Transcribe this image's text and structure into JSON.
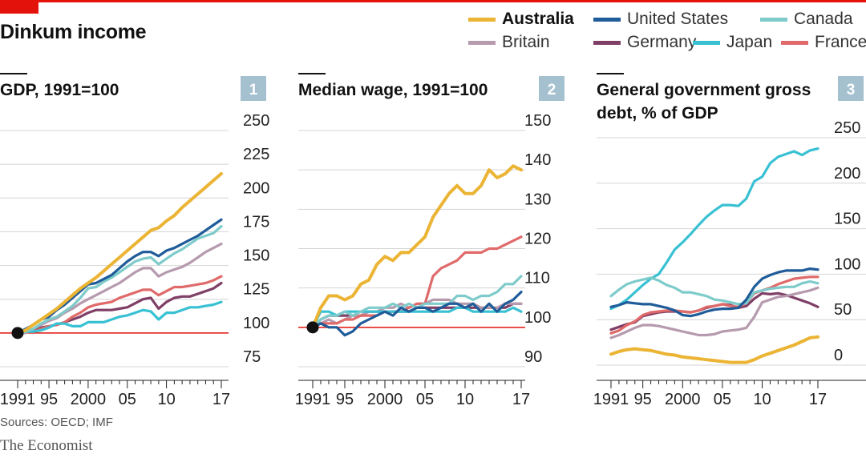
{
  "header": {
    "title": "Dinkum income",
    "source": "Sources: OECD; IMF",
    "brand": "The Economist"
  },
  "colors": {
    "accent": "#e3120b",
    "Australia": "#ebb434",
    "United States": "#1f5c99",
    "Canada": "#7dcbca",
    "Britain": "#b69aae",
    "Germany": "#7f3f66",
    "Japan": "#38c1d3",
    "France": "#e06a6a",
    "baseline": "#e3120b",
    "grid": "#d4d4d4",
    "numbox": "#a5c0cf"
  },
  "legend": [
    {
      "name": "Australia",
      "bold": true
    },
    {
      "name": "United States",
      "bold": false
    },
    {
      "name": "Canada",
      "bold": false
    },
    {
      "name": "Britain",
      "bold": false
    },
    {
      "name": "Germany",
      "bold": false
    },
    {
      "name": "Japan",
      "bold": false
    },
    {
      "name": "France",
      "bold": false
    }
  ],
  "chart_data": [
    {
      "type": "line",
      "number": "1",
      "title": "GDP, 1991=100",
      "x": [
        1991,
        1992,
        1993,
        1994,
        1995,
        1996,
        1997,
        1998,
        1999,
        2000,
        2001,
        2002,
        2003,
        2004,
        2005,
        2006,
        2007,
        2008,
        2009,
        2010,
        2011,
        2012,
        2013,
        2014,
        2015,
        2016,
        2017
      ],
      "xticks": [
        {
          "v": 1991,
          "label": "1991"
        },
        {
          "v": 1995,
          "label": "95"
        },
        {
          "v": 2000,
          "label": "2000"
        },
        {
          "v": 2005,
          "label": "05"
        },
        {
          "v": 2010,
          "label": "10"
        },
        {
          "v": 2017,
          "label": "17"
        }
      ],
      "ylim": [
        75,
        250
      ],
      "yticks": [
        75,
        100,
        125,
        150,
        175,
        200,
        225,
        250
      ],
      "baseline": 100,
      "start_marker": [
        1991,
        100
      ],
      "grid": true,
      "series": [
        {
          "name": "Australia",
          "values": [
            100,
            102,
            106,
            110,
            114,
            118,
            123,
            128,
            133,
            137,
            141,
            146,
            151,
            156,
            161,
            166,
            171,
            176,
            178,
            183,
            187,
            193,
            198,
            203,
            208,
            213,
            218
          ]
        },
        {
          "name": "United States",
          "values": [
            100,
            103,
            106,
            110,
            112,
            117,
            121,
            126,
            131,
            136,
            137,
            140,
            143,
            148,
            153,
            157,
            160,
            160,
            157,
            161,
            163,
            166,
            169,
            172,
            176,
            180,
            184
          ]
        },
        {
          "name": "Canada",
          "values": [
            100,
            101,
            103,
            107,
            110,
            112,
            116,
            120,
            126,
            133,
            134,
            138,
            141,
            145,
            149,
            153,
            155,
            156,
            151,
            155,
            159,
            162,
            166,
            170,
            172,
            174,
            179
          ]
        },
        {
          "name": "Britain",
          "values": [
            100,
            100,
            103,
            106,
            109,
            111,
            115,
            118,
            122,
            125,
            128,
            131,
            134,
            137,
            141,
            145,
            148,
            148,
            142,
            145,
            147,
            149,
            152,
            156,
            160,
            163,
            166
          ]
        },
        {
          "name": "Germany",
          "values": [
            100,
            102,
            101,
            104,
            105,
            106,
            108,
            110,
            112,
            115,
            117,
            117,
            117,
            118,
            119,
            122,
            125,
            126,
            118,
            123,
            126,
            127,
            127,
            129,
            131,
            133,
            137
          ]
        },
        {
          "name": "Japan",
          "values": [
            100,
            101,
            101,
            102,
            104,
            107,
            107,
            105,
            105,
            108,
            108,
            108,
            110,
            112,
            113,
            115,
            117,
            116,
            110,
            115,
            115,
            117,
            119,
            119,
            120,
            121,
            123
          ]
        },
        {
          "name": "France",
          "values": [
            100,
            101,
            101,
            103,
            105,
            106,
            108,
            112,
            115,
            119,
            121,
            122,
            123,
            126,
            128,
            130,
            132,
            132,
            128,
            131,
            134,
            134,
            135,
            136,
            137,
            139,
            142
          ]
        }
      ]
    },
    {
      "type": "line",
      "number": "2",
      "title": "Median wage, 1991=100",
      "x": [
        1991,
        1992,
        1993,
        1994,
        1995,
        1996,
        1997,
        1998,
        1999,
        2000,
        2001,
        2002,
        2003,
        2004,
        2005,
        2006,
        2007,
        2008,
        2009,
        2010,
        2011,
        2012,
        2013,
        2014,
        2015,
        2016,
        2017
      ],
      "xticks": [
        {
          "v": 1991,
          "label": "1991"
        },
        {
          "v": 1995,
          "label": "95"
        },
        {
          "v": 2000,
          "label": "2000"
        },
        {
          "v": 2005,
          "label": "05"
        },
        {
          "v": 2010,
          "label": "10"
        },
        {
          "v": 2017,
          "label": "17"
        }
      ],
      "ylim": [
        90,
        150
      ],
      "yticks": [
        90,
        100,
        110,
        120,
        130,
        140,
        150
      ],
      "baseline": 100,
      "start_marker": [
        1991,
        100
      ],
      "grid": true,
      "series": [
        {
          "name": "Australia",
          "values": [
            100,
            105,
            108,
            108,
            107,
            108,
            111,
            112,
            116,
            118,
            117,
            119,
            119,
            121,
            123,
            128,
            131,
            134,
            136,
            134,
            134,
            136,
            140,
            138,
            139,
            141,
            140
          ]
        },
        {
          "name": "United States",
          "values": [
            100,
            101,
            100,
            100,
            98,
            99,
            101,
            102,
            103,
            104,
            103,
            105,
            104,
            105,
            105,
            104,
            105,
            106,
            106,
            105,
            106,
            104,
            106,
            104,
            106,
            107,
            109
          ]
        },
        {
          "name": "Canada",
          "values": [
            100,
            102,
            103,
            103,
            104,
            103,
            104,
            105,
            105,
            105,
            106,
            105,
            106,
            105,
            106,
            106,
            106,
            106,
            108,
            108,
            107,
            108,
            108,
            109,
            111,
            111,
            113
          ]
        },
        {
          "name": "Britain",
          "values": [
            100,
            101,
            102,
            101,
            102,
            103,
            103,
            104,
            104,
            105,
            105,
            106,
            105,
            106,
            106,
            107,
            107,
            107,
            106,
            106,
            106,
            105,
            105,
            105,
            106,
            106,
            106
          ]
        },
        {
          "name": "Germany",
          "values": [
            100,
            102,
            103,
            103,
            103,
            103,
            103,
            104,
            104,
            104,
            104,
            104,
            104,
            105,
            105,
            105,
            105,
            105,
            105,
            105,
            105,
            105,
            105,
            105,
            105,
            106,
            106
          ]
        },
        {
          "name": "Japan",
          "values": [
            100,
            104,
            104,
            103,
            104,
            104,
            104,
            104,
            104,
            104,
            104,
            104,
            104,
            104,
            104,
            104,
            104,
            104,
            105,
            105,
            104,
            104,
            104,
            104,
            104,
            105,
            104
          ]
        },
        {
          "name": "France",
          "values": [
            100,
            101,
            101,
            101,
            102,
            102,
            103,
            103,
            103,
            104,
            104,
            104,
            105,
            106,
            106,
            113,
            115,
            116,
            117,
            119,
            119,
            119,
            120,
            120,
            121,
            122,
            123
          ]
        }
      ]
    },
    {
      "type": "line",
      "number": "3",
      "title": "General government gross debt, % of GDP",
      "title_lines": [
        "General government gross",
        "debt, % of GDP"
      ],
      "x": [
        1991,
        1992,
        1993,
        1994,
        1995,
        1996,
        1997,
        1998,
        1999,
        2000,
        2001,
        2002,
        2003,
        2004,
        2005,
        2006,
        2007,
        2008,
        2009,
        2010,
        2011,
        2012,
        2013,
        2014,
        2015,
        2016,
        2017
      ],
      "xticks": [
        {
          "v": 1991,
          "label": "1991"
        },
        {
          "v": 1995,
          "label": "95"
        },
        {
          "v": 2000,
          "label": "2000"
        },
        {
          "v": 2005,
          "label": "05"
        },
        {
          "v": 2010,
          "label": "10"
        },
        {
          "v": 2017,
          "label": "17"
        }
      ],
      "ylim": [
        0,
        250
      ],
      "yticks": [
        0,
        50,
        100,
        150,
        200,
        250
      ],
      "grid": true,
      "series": [
        {
          "name": "Australia",
          "values": [
            12,
            15,
            17,
            18,
            17,
            16,
            14,
            12,
            11,
            9,
            8,
            7,
            6,
            5,
            4,
            3,
            3,
            3,
            6,
            10,
            13,
            16,
            19,
            22,
            26,
            30,
            31
          ]
        },
        {
          "name": "United States",
          "values": [
            64,
            66,
            69,
            68,
            67,
            67,
            65,
            63,
            60,
            55,
            54,
            56,
            59,
            61,
            62,
            62,
            63,
            72,
            86,
            95,
            99,
            102,
            104,
            104,
            104,
            106,
            105
          ]
        },
        {
          "name": "Canada",
          "values": [
            76,
            83,
            89,
            92,
            94,
            96,
            93,
            88,
            85,
            80,
            80,
            78,
            76,
            72,
            71,
            69,
            67,
            68,
            80,
            82,
            84,
            85,
            86,
            86,
            90,
            92,
            90
          ]
        },
        {
          "name": "Britain",
          "values": [
            30,
            33,
            37,
            41,
            44,
            44,
            43,
            41,
            39,
            37,
            35,
            33,
            33,
            34,
            37,
            38,
            39,
            41,
            53,
            69,
            72,
            75,
            76,
            78,
            80,
            82,
            85
          ]
        },
        {
          "name": "Germany",
          "values": [
            39,
            42,
            45,
            47,
            54,
            56,
            58,
            59,
            59,
            59,
            58,
            60,
            63,
            65,
            67,
            66,
            63,
            65,
            73,
            79,
            78,
            79,
            77,
            74,
            71,
            68,
            64
          ]
        },
        {
          "name": "Japan",
          "values": [
            62,
            66,
            72,
            80,
            88,
            95,
            100,
            113,
            127,
            135,
            144,
            154,
            163,
            170,
            176,
            176,
            175,
            183,
            202,
            207,
            222,
            229,
            232,
            235,
            231,
            236,
            238
          ]
        },
        {
          "name": "France",
          "values": [
            35,
            38,
            44,
            48,
            55,
            58,
            59,
            60,
            60,
            59,
            58,
            60,
            64,
            65,
            67,
            65,
            64,
            68,
            79,
            82,
            85,
            89,
            92,
            95,
            96,
            97,
            97
          ]
        }
      ]
    }
  ]
}
